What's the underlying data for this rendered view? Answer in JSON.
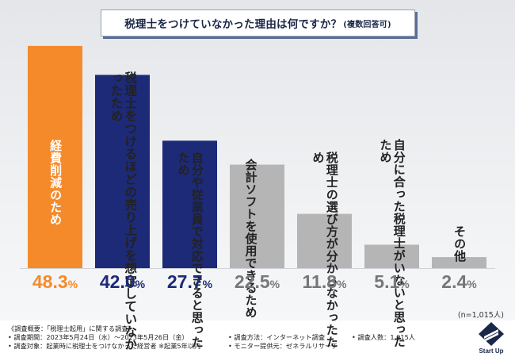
{
  "title": {
    "main": "税理士をつけていなかった理由は何ですか？",
    "sub": "(複数回答可)"
  },
  "chart_data": {
    "type": "bar",
    "title": "税理士をつけていなかった理由は何ですか？(複数回答可)",
    "categories": [
      "経費削減のため",
      "税理士をつけるほどの売り上げを想定していなかったため",
      "自分や従業員で対応できると思ったため",
      "会計ソフトを使用できるため",
      "税理士の選び方が分からなかったため",
      "自分に合った税理士がいないと思ったため",
      "その他"
    ],
    "label_lines": [
      [
        "経費削減のため"
      ],
      [
        "税理士をつけるほどの売り上げを",
        "想定していなかったため"
      ],
      [
        "自分や従業員で対応",
        "できると思ったため"
      ],
      [
        "会計ソフトを",
        "使用できるため"
      ],
      [
        "税理士の選び方が",
        "分からなかったため"
      ],
      [
        "自分に合った税理士が",
        "いないと思ったため"
      ],
      [
        "その他"
      ]
    ],
    "values": [
      48.3,
      42.0,
      27.7,
      22.5,
      11.8,
      5.1,
      2.4
    ],
    "value_labels": [
      "48.3",
      "42.0",
      "27.7",
      "22.5",
      "11.8",
      "5.1",
      "2.4"
    ],
    "unit": "%",
    "ylim": [
      0,
      50
    ],
    "sample": "(n=1,015人)",
    "colors": [
      "#f58a2b",
      "#1d2a78",
      "#1d2a78",
      "#b5b5b5",
      "#b5b5b5",
      "#b5b5b5",
      "#b5b5b5"
    ],
    "label_colors": [
      "#ffffff",
      "#222222",
      "#222222",
      "#222222",
      "#222222",
      "#222222",
      "#222222"
    ],
    "pct_colors": [
      "#f58a2b",
      "#1d2a78",
      "#1d2a78",
      "#777777",
      "#777777",
      "#777777",
      "#777777"
    ]
  },
  "notes": {
    "overview": "《調査概要：「税理士起用」に関する調査》",
    "period": "• 調査期間：2023年5月24日（水）〜2023年5月26日（金）",
    "target": "• 調査対象：起業時に税理士をつけなかった経営者 ※起業5年以内",
    "method": "• 調査方法：インターネット調査",
    "people": "• 調査人数：1,015人",
    "provider": "• モニター提供元：ゼネラルリサーチ"
  },
  "logo": {
    "text": "Start Up",
    "color": "#1a2747"
  }
}
